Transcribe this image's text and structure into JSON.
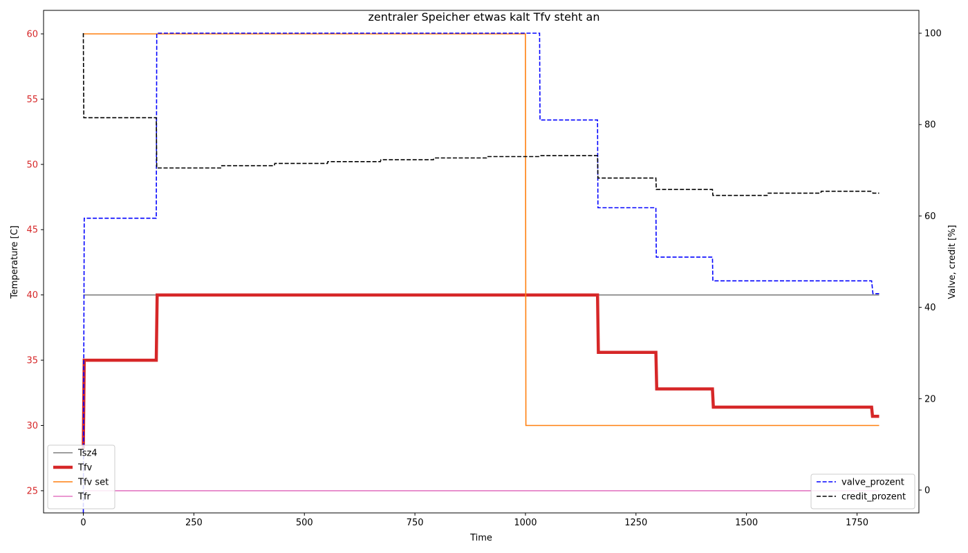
{
  "chart_data": {
    "type": "line",
    "title": "zentraler Speicher etwas kalt Tfv steht an",
    "xlabel": "Time",
    "ylabel_left": "Temperature [C]",
    "ylabel_right": "Valve, credit [%]",
    "xlim": [
      -90,
      1890
    ],
    "ylim_left": [
      23.3,
      61.8
    ],
    "ylim_right": [
      -5,
      105
    ],
    "x_ticks": [
      0,
      250,
      500,
      750,
      1000,
      1250,
      1500,
      1750
    ],
    "y_left_ticks": [
      25,
      30,
      35,
      40,
      45,
      50,
      55,
      60
    ],
    "y_right_ticks": [
      0,
      20,
      40,
      60,
      80,
      100
    ],
    "grid": false,
    "colors": {
      "left_axis": "#d62728",
      "Tsz4": "#7f7f7f",
      "Tfv": "#d62728",
      "Tfv_set": "#ff7f0e",
      "Tfr": "#e377c2",
      "valve": "#0000ff",
      "credit": "#000000"
    },
    "left_series": [
      {
        "name": "Tsz4",
        "key": "Tsz4",
        "style": "solid",
        "width": 1.6,
        "points": [
          [
            0,
            40
          ],
          [
            1800,
            40
          ]
        ]
      },
      {
        "name": "Tfv",
        "key": "Tfv",
        "style": "solid",
        "width": 4.5,
        "points": [
          [
            0,
            28.2
          ],
          [
            2,
            35
          ],
          [
            165,
            35
          ],
          [
            167,
            40
          ],
          [
            1163,
            40
          ],
          [
            1165,
            35.6
          ],
          [
            1295,
            35.6
          ],
          [
            1297,
            32.8
          ],
          [
            1423,
            32.8
          ],
          [
            1425,
            31.4
          ],
          [
            1783,
            31.4
          ],
          [
            1785,
            30.7
          ],
          [
            1800,
            30.7
          ]
        ]
      },
      {
        "name": "Tfv set",
        "key": "Tfv_set",
        "style": "solid",
        "width": 1.6,
        "points": [
          [
            0,
            60
          ],
          [
            1000,
            60
          ],
          [
            1001,
            30
          ],
          [
            1800,
            30
          ]
        ]
      },
      {
        "name": "Tfr",
        "key": "Tfr",
        "style": "solid",
        "width": 1.6,
        "points": [
          [
            0,
            25
          ],
          [
            1800,
            25
          ]
        ]
      }
    ],
    "right_series": [
      {
        "name": "valve_prozent",
        "key": "valve",
        "style": "dashed",
        "width": 1.6,
        "points": [
          [
            0,
            -5
          ],
          [
            2,
            59.5
          ],
          [
            165,
            59.5
          ],
          [
            166,
            100
          ],
          [
            1032,
            100
          ],
          [
            1033,
            81
          ],
          [
            1163,
            81
          ],
          [
            1164,
            61.8
          ],
          [
            1295,
            61.8
          ],
          [
            1296,
            51
          ],
          [
            1423,
            51
          ],
          [
            1424,
            45.8
          ],
          [
            1783,
            45.8
          ],
          [
            1786,
            43
          ],
          [
            1800,
            43
          ]
        ]
      },
      {
        "name": "credit_prozent",
        "key": "credit",
        "style": "dashed",
        "width": 1.6,
        "points": [
          [
            0,
            100
          ],
          [
            1,
            81.5
          ],
          [
            165,
            81.5
          ],
          [
            166,
            70.5
          ],
          [
            312,
            70.5
          ],
          [
            313,
            71
          ],
          [
            432,
            71
          ],
          [
            433,
            71.5
          ],
          [
            552,
            71.5
          ],
          [
            553,
            71.9
          ],
          [
            672,
            71.9
          ],
          [
            673,
            72.3
          ],
          [
            792,
            72.3
          ],
          [
            793,
            72.7
          ],
          [
            912,
            72.7
          ],
          [
            913,
            73
          ],
          [
            1032,
            73
          ],
          [
            1033,
            73.2
          ],
          [
            1163,
            73.2
          ],
          [
            1164,
            68.3
          ],
          [
            1295,
            68.3
          ],
          [
            1296,
            65.8
          ],
          [
            1423,
            65.8
          ],
          [
            1424,
            64.5
          ],
          [
            1548,
            64.5
          ],
          [
            1549,
            65
          ],
          [
            1668,
            65
          ],
          [
            1669,
            65.4
          ],
          [
            1783,
            65.4
          ],
          [
            1786,
            65
          ],
          [
            1800,
            65
          ]
        ]
      }
    ],
    "legend_left": {
      "placement": "lower-left",
      "entries": [
        {
          "name": "Tsz4",
          "key": "Tsz4",
          "style": "solid",
          "width": 1.6
        },
        {
          "name": "Tfv",
          "key": "Tfv",
          "style": "solid",
          "width": 4.5
        },
        {
          "name": "Tfv set",
          "key": "Tfv_set",
          "style": "solid",
          "width": 1.6
        },
        {
          "name": "Tfr",
          "key": "Tfr",
          "style": "solid",
          "width": 1.6
        }
      ]
    },
    "legend_right": {
      "placement": "lower-right",
      "entries": [
        {
          "name": "valve_prozent",
          "key": "valve",
          "style": "dashed",
          "width": 1.6
        },
        {
          "name": "credit_prozent",
          "key": "credit",
          "style": "dashed",
          "width": 1.6
        }
      ]
    }
  }
}
